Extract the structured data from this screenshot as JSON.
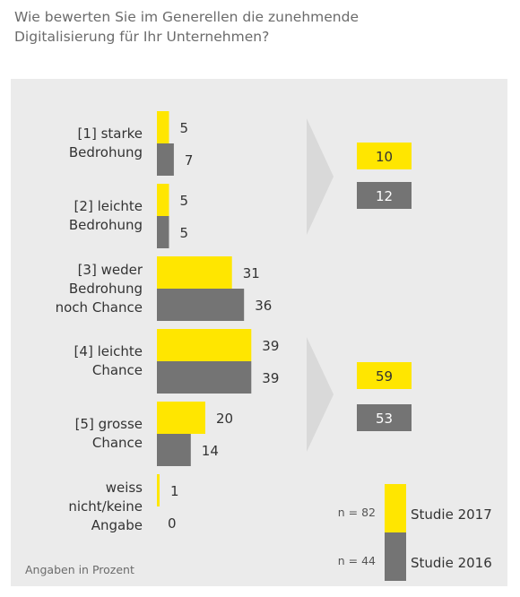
{
  "question": {
    "line1": "Wie bewerten Sie im Generellen die zunehmende",
    "line2": "Digitalisierung für Ihr Unternehmen?"
  },
  "chart_data": {
    "type": "bar",
    "orientation": "horizontal",
    "categories": [
      [
        "[1] starke",
        "Bedrohung"
      ],
      [
        "[2] leichte",
        "Bedrohung"
      ],
      [
        "[3] weder",
        "Bedrohung",
        "noch Chance"
      ],
      [
        "[4] leichte",
        "Chance"
      ],
      [
        "[5] grosse",
        "Chance"
      ],
      [
        "weiss",
        "nicht/keine",
        "Angabe"
      ]
    ],
    "series": [
      {
        "name": "Studie 2017",
        "n_label": "n = 82",
        "color": "#ffe600",
        "values": [
          5,
          5,
          31,
          39,
          20,
          1
        ]
      },
      {
        "name": "Studie 2016",
        "n_label": "n = 44",
        "color": "#747474",
        "values": [
          7,
          5,
          36,
          39,
          14,
          0
        ]
      }
    ],
    "summaries": [
      {
        "covers": [
          "[1]",
          "[2]"
        ],
        "values": {
          "Studie 2017": 10,
          "Studie 2016": 12
        }
      },
      {
        "covers": [
          "[4]",
          "[5]"
        ],
        "values": {
          "Studie 2017": 59,
          "Studie 2016": 53
        }
      }
    ],
    "legend_position": "bottom-right",
    "grid": false
  },
  "footnote": "Angaben in Prozent"
}
